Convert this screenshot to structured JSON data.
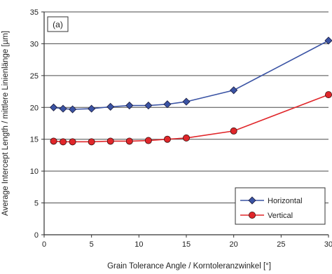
{
  "chart_data": {
    "type": "line",
    "panel_label": "(a)",
    "xlabel": "Grain Tolerance Angle / Korntoleranzwinkel [°]",
    "ylabel": "Average Intercept Length / mittlere Linienlänge [µm]",
    "xlim": [
      0,
      30
    ],
    "ylim": [
      0,
      35
    ],
    "xticks": [
      0,
      5,
      10,
      15,
      20,
      25,
      30
    ],
    "yticks": [
      0,
      5,
      10,
      15,
      20,
      25,
      30,
      35
    ],
    "grid": "horizontal",
    "legend_position": "bottom-right",
    "series": [
      {
        "name": "Horizontal",
        "color": "#3a53a4",
        "marker": "diamond",
        "x": [
          1,
          2,
          3,
          5,
          7,
          9,
          11,
          13,
          15,
          20,
          30
        ],
        "y": [
          20.0,
          19.8,
          19.7,
          19.8,
          20.1,
          20.3,
          20.3,
          20.5,
          20.9,
          22.7,
          30.5
        ]
      },
      {
        "name": "Vertical",
        "color": "#e0262a",
        "marker": "circle",
        "x": [
          1,
          2,
          3,
          5,
          7,
          9,
          11,
          13,
          15,
          20,
          30
        ],
        "y": [
          14.7,
          14.6,
          14.6,
          14.6,
          14.7,
          14.7,
          14.8,
          15.0,
          15.2,
          16.3,
          22.0
        ]
      }
    ]
  }
}
